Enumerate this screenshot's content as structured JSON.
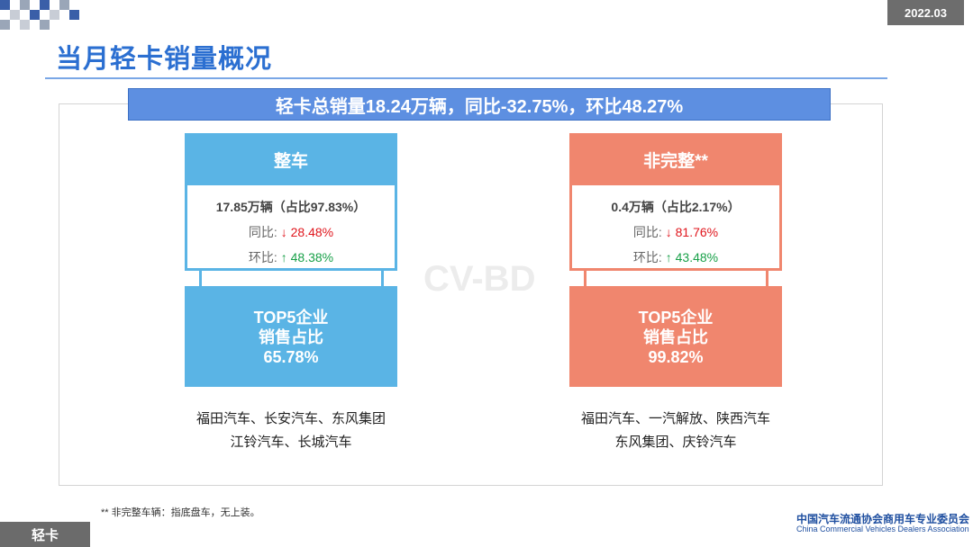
{
  "header": {
    "date": "2022.03",
    "title": "当月轻卡销量概况"
  },
  "watermark": "CV-BD",
  "banner": "轻卡总销量18.24万辆，同比-32.75%，环比48.27%",
  "cards": [
    {
      "title": "整车",
      "volume": "17.85万辆（占比97.83%）",
      "yoy": {
        "label": "同比:",
        "value": "↓ 28.48%"
      },
      "mom": {
        "label": "环比:",
        "value": "↑ 48.38%"
      },
      "top5": [
        "TOP5企业",
        "销售占比",
        "65.78%"
      ],
      "companies": [
        "福田汽车、长安汽车、东风集团",
        "江铃汽车、长城汽车"
      ]
    },
    {
      "title": "非完整**",
      "volume": "0.4万辆（占比2.17%）",
      "yoy": {
        "label": "同比:",
        "value": "↓ 81.76%"
      },
      "mom": {
        "label": "环比:",
        "value": "↑ 43.48%"
      },
      "top5": [
        "TOP5企业",
        "销售占比",
        "99.82%"
      ],
      "companies": [
        "福田汽车、一汽解放、陕西汽车",
        "东风集团、庆铃汽车"
      ]
    }
  ],
  "footnote": "** 非完整车辆：指底盘车，无上装。",
  "tag": "轻卡",
  "logo": {
    "name": "中国汽车流通协会商用车专业委员会",
    "english": "China Commercial Vehicles Dealers Association"
  }
}
